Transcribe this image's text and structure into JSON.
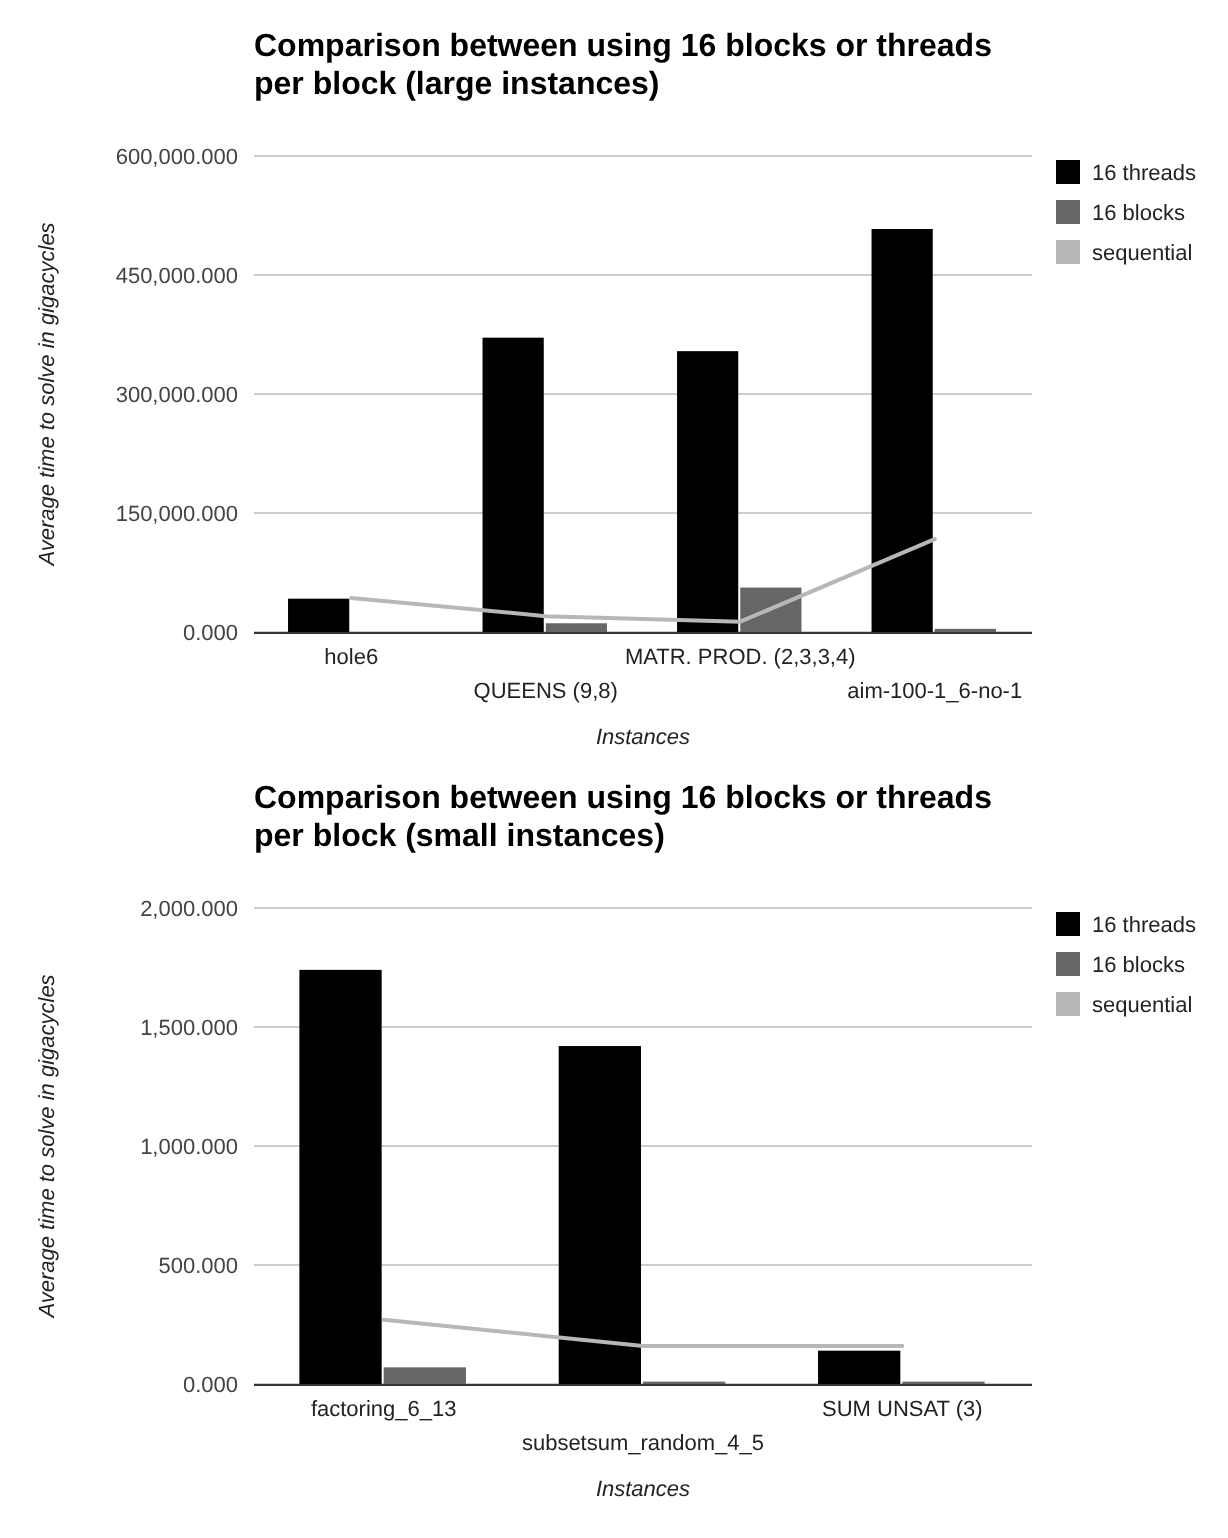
{
  "chart_data": [
    {
      "type": "bar",
      "title": "Comparison between using 16 blocks or threads per block (large instances)",
      "xlabel": "Instances",
      "ylabel": "Average time to solve in gigacycles",
      "categories": [
        "hole6",
        "QUEENS (9,8)",
        "MATR. PROD. (2,3,3,4)",
        "aim-100-1_6-no-1"
      ],
      "series": [
        {
          "name": "16 threads",
          "color": "#000000",
          "values": [
            42000,
            371000,
            354000,
            508000
          ]
        },
        {
          "name": "16 blocks",
          "color": "#666666",
          "values": [
            0,
            11000,
            56000,
            4000
          ]
        },
        {
          "name": "sequential",
          "type": "line",
          "color": "#b7b7b7",
          "values": [
            43000,
            20000,
            13000,
            117000
          ]
        }
      ],
      "ylim": [
        0,
        600000
      ],
      "yticks": [
        {
          "value": 0,
          "label": "0.000"
        },
        {
          "value": 150000,
          "label": "150,000.000"
        },
        {
          "value": 300000,
          "label": "300,000.000"
        },
        {
          "value": 450000,
          "label": "450,000.000"
        },
        {
          "value": 600000,
          "label": "600,000.000"
        }
      ],
      "grid": "y",
      "legend": "top right"
    },
    {
      "type": "bar",
      "title": "Comparison between using 16 blocks or threads per block (small instances)",
      "xlabel": "Instances",
      "ylabel": "Average time to solve in gigacycles",
      "categories": [
        "factoring_6_13",
        "subsetsum_random_4_5",
        "SUM UNSAT (3)"
      ],
      "series": [
        {
          "name": "16 threads",
          "color": "#000000",
          "values": [
            1740,
            1420,
            140
          ]
        },
        {
          "name": "16 blocks",
          "color": "#666666",
          "values": [
            70,
            10,
            10
          ]
        },
        {
          "name": "sequential",
          "type": "line",
          "color": "#b7b7b7",
          "values": [
            270,
            160,
            160
          ]
        }
      ],
      "ylim": [
        0,
        2000
      ],
      "yticks": [
        {
          "value": 0,
          "label": "0.000"
        },
        {
          "value": 500,
          "label": "500.000"
        },
        {
          "value": 1000,
          "label": "1,000.000"
        },
        {
          "value": 1500,
          "label": "1,500.000"
        },
        {
          "value": 2000,
          "label": "2,000.000"
        }
      ],
      "grid": "y",
      "legend": "top right"
    }
  ]
}
